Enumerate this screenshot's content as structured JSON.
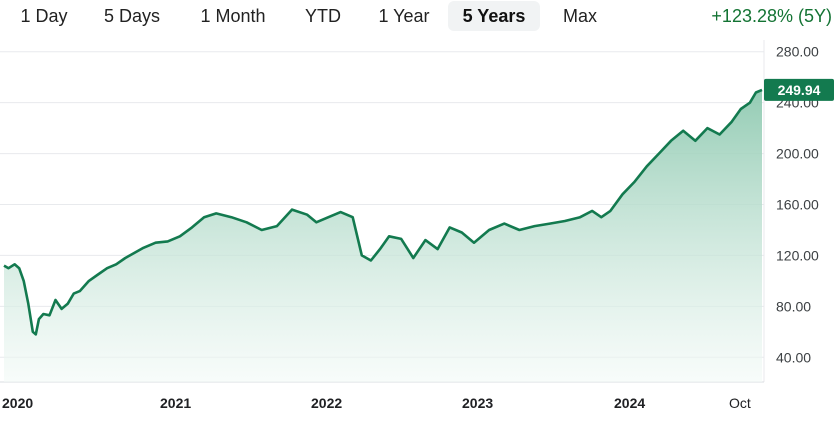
{
  "range_tabs": [
    {
      "label": "1 Day",
      "active": false
    },
    {
      "label": "5 Days",
      "active": false
    },
    {
      "label": "1 Month",
      "active": false
    },
    {
      "label": "YTD",
      "active": false
    },
    {
      "label": "1 Year",
      "active": false
    },
    {
      "label": "5 Years",
      "active": true
    },
    {
      "label": "Max",
      "active": false
    }
  ],
  "change_text": "+123.28% (5Y)",
  "current_price": "249.94",
  "colors": {
    "line": "#137a4f",
    "fill_top": "#8ec9b0",
    "fill_bottom": "#f3faf7",
    "positive": "#137333",
    "grid": "#e8eaed"
  },
  "chart_data": {
    "type": "area",
    "x_labels": [
      "2020",
      "2021",
      "2022",
      "2023",
      "2024",
      "Oct"
    ],
    "y_ticks": [
      "40.00",
      "80.00",
      "120.00",
      "160.00",
      "200.00",
      "240.00",
      "280.00"
    ],
    "ylim": [
      30,
      290
    ],
    "xlim": [
      2020.0,
      2025.0
    ],
    "grid": true,
    "series": [
      {
        "x": [
          2020.0,
          2020.03,
          2020.07,
          2020.1,
          2020.13,
          2020.16,
          2020.19,
          2020.21,
          2020.23,
          2020.26,
          2020.3,
          2020.34,
          2020.38,
          2020.42,
          2020.46,
          2020.5,
          2020.56,
          2020.62,
          2020.68,
          2020.74,
          2020.8,
          2020.86,
          2020.92,
          2021.0,
          2021.08,
          2021.16,
          2021.24,
          2021.32,
          2021.4,
          2021.5,
          2021.6,
          2021.7,
          2021.8,
          2021.9,
          2022.0,
          2022.06,
          2022.14,
          2022.22,
          2022.3,
          2022.36,
          2022.42,
          2022.48,
          2022.54,
          2022.62,
          2022.7,
          2022.78,
          2022.86,
          2022.94,
          2023.02,
          2023.1,
          2023.2,
          2023.3,
          2023.4,
          2023.5,
          2023.6,
          2023.7,
          2023.8,
          2023.88,
          2023.94,
          2024.0,
          2024.08,
          2024.16,
          2024.24,
          2024.32,
          2024.4,
          2024.48,
          2024.56,
          2024.64,
          2024.72,
          2024.8,
          2024.86,
          2024.92,
          2024.96,
          2025.0
        ],
        "y": [
          112,
          110,
          113,
          110,
          100,
          82,
          60,
          58,
          70,
          74,
          73,
          85,
          78,
          82,
          90,
          92,
          100,
          105,
          110,
          113,
          118,
          122,
          126,
          130,
          131,
          135,
          142,
          150,
          153,
          150,
          146,
          140,
          143,
          156,
          152,
          146,
          150,
          154,
          150,
          120,
          116,
          125,
          135,
          133,
          118,
          132,
          125,
          142,
          138,
          130,
          140,
          145,
          140,
          143,
          145,
          147,
          150,
          155,
          150,
          155,
          168,
          178,
          190,
          200,
          210,
          218,
          210,
          220,
          215,
          225,
          235,
          240,
          248,
          250
        ]
      }
    ]
  }
}
